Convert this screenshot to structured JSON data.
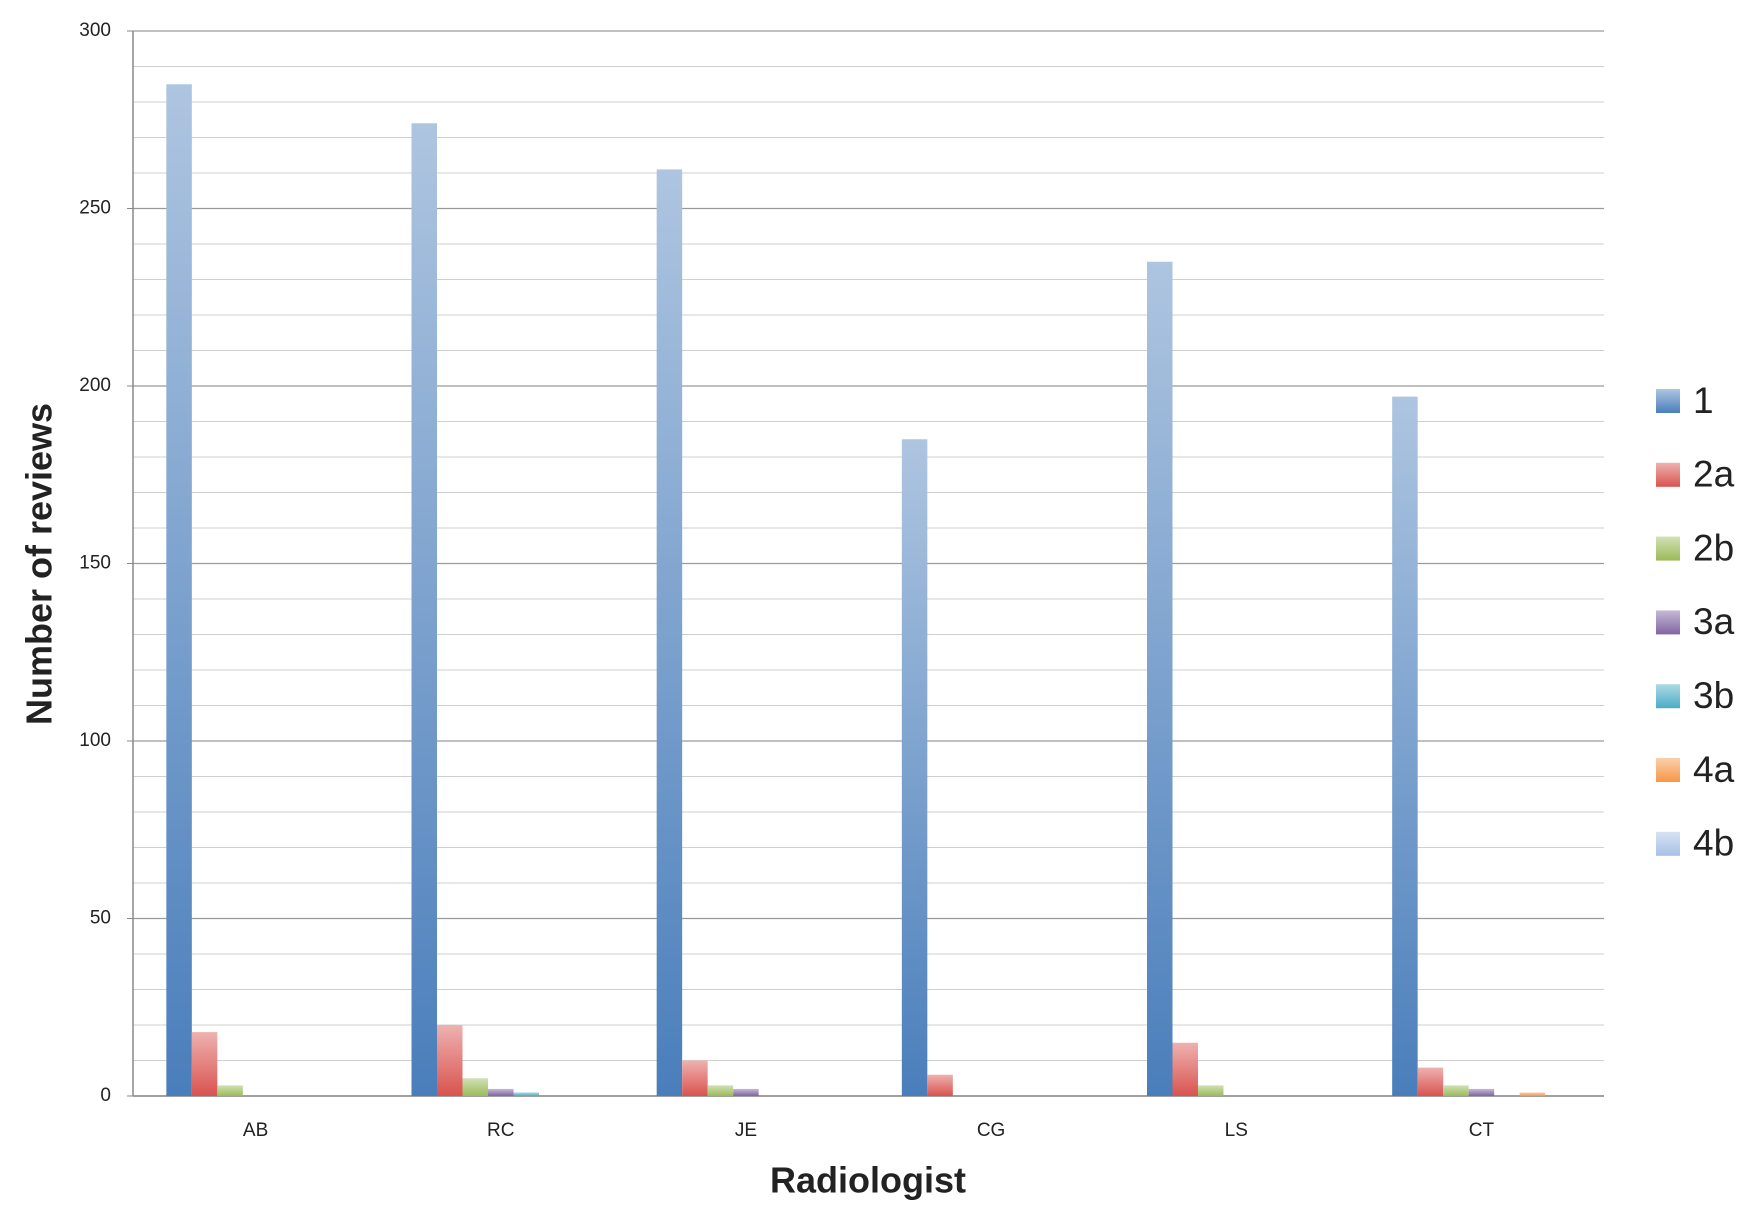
{
  "chart_data": {
    "type": "bar",
    "x_label": "Radiologist",
    "y_label": "Number of reviews",
    "categories": [
      "AB",
      "RC",
      "JE",
      "CG",
      "LS",
      "CT"
    ],
    "series": [
      {
        "name": "1",
        "color": "#4a7ebb",
        "values": [
          285,
          274,
          261,
          185,
          235,
          197
        ]
      },
      {
        "name": "2a",
        "color": "#d9534f",
        "values": [
          18,
          20,
          10,
          6,
          15,
          8
        ]
      },
      {
        "name": "2b",
        "color": "#9bbb59",
        "values": [
          3,
          5,
          3,
          0,
          3,
          3
        ]
      },
      {
        "name": "3a",
        "color": "#8064a2",
        "values": [
          0,
          2,
          2,
          0,
          0,
          2
        ]
      },
      {
        "name": "3b",
        "color": "#4bacc6",
        "values": [
          0,
          1,
          0,
          0,
          0,
          0
        ]
      },
      {
        "name": "4a",
        "color": "#f79646",
        "values": [
          0,
          0,
          0,
          0,
          0,
          1
        ]
      },
      {
        "name": "4b",
        "color": "#a7c0e6",
        "values": [
          0,
          0,
          0,
          0,
          0,
          0
        ]
      }
    ],
    "ylim": [
      0,
      300
    ],
    "yticks": [
      0,
      50,
      100,
      150,
      200,
      250,
      300
    ],
    "minor_grid_interval": 10,
    "grid": true,
    "legend": "right"
  }
}
